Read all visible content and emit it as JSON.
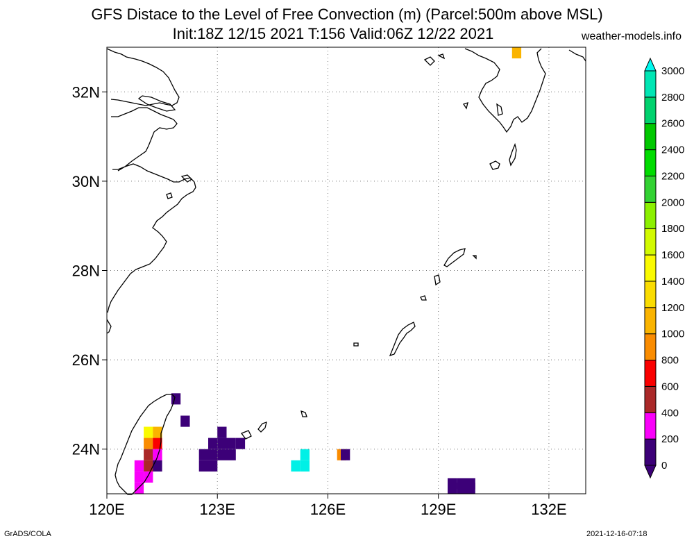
{
  "header": {
    "title_line1": "GFS Distace to the Level of Free Convection (m) (Parcel:500m above MSL)",
    "title_line2": "Init:18Z 12/15 2021 T:156 Valid:06Z 12/22 2021",
    "site": "weather-models.info"
  },
  "footer": {
    "left": "GrADS/COLA",
    "right": "2021-12-16-07:18"
  },
  "map": {
    "projection": "latlon",
    "lon_range": [
      120,
      133
    ],
    "lat_range": [
      23,
      33
    ],
    "lon_ticks": [
      {
        "value": 120,
        "label": "120E"
      },
      {
        "value": 123,
        "label": "123E"
      },
      {
        "value": 126,
        "label": "126E"
      },
      {
        "value": 129,
        "label": "129E"
      },
      {
        "value": 132,
        "label": "132E"
      }
    ],
    "lat_ticks": [
      {
        "value": 24,
        "label": "24N"
      },
      {
        "value": 26,
        "label": "26N"
      },
      {
        "value": 28,
        "label": "28N"
      },
      {
        "value": 30,
        "label": "30N"
      },
      {
        "value": 32,
        "label": "32N"
      }
    ],
    "grid": "dotted",
    "cells": [
      {
        "lon": 121.0,
        "lat": 24.25,
        "value": 1400
      },
      {
        "lon": 121.25,
        "lat": 24.25,
        "value": 1000
      },
      {
        "lon": 121.0,
        "lat": 24.0,
        "value": 800
      },
      {
        "lon": 121.25,
        "lat": 24.0,
        "value": 600
      },
      {
        "lon": 121.0,
        "lat": 23.75,
        "value": 500
      },
      {
        "lon": 121.25,
        "lat": 23.75,
        "value": 300
      },
      {
        "lon": 120.75,
        "lat": 23.5,
        "value": 300
      },
      {
        "lon": 121.0,
        "lat": 23.5,
        "value": 500
      },
      {
        "lon": 121.25,
        "lat": 23.5,
        "value": 150
      },
      {
        "lon": 120.75,
        "lat": 23.25,
        "value": 300
      },
      {
        "lon": 121.0,
        "lat": 23.25,
        "value": 300
      },
      {
        "lon": 120.75,
        "lat": 23.0,
        "value": 300
      },
      {
        "lon": 121.75,
        "lat": 25.0,
        "value": 50
      },
      {
        "lon": 122.0,
        "lat": 24.5,
        "value": 50
      },
      {
        "lon": 122.75,
        "lat": 24.0,
        "value": 50
      },
      {
        "lon": 123.0,
        "lat": 24.0,
        "value": 50
      },
      {
        "lon": 123.0,
        "lat": 24.25,
        "value": 50
      },
      {
        "lon": 123.25,
        "lat": 24.0,
        "value": 150
      },
      {
        "lon": 123.5,
        "lat": 24.0,
        "value": 150
      },
      {
        "lon": 122.5,
        "lat": 23.75,
        "value": 50
      },
      {
        "lon": 122.75,
        "lat": 23.75,
        "value": 50
      },
      {
        "lon": 123.0,
        "lat": 23.75,
        "value": 50
      },
      {
        "lon": 123.25,
        "lat": 23.75,
        "value": 150
      },
      {
        "lon": 122.5,
        "lat": 23.5,
        "value": 50
      },
      {
        "lon": 122.75,
        "lat": 23.5,
        "value": 150
      },
      {
        "lon": 125.0,
        "lat": 23.5,
        "value": 3000
      },
      {
        "lon": 125.25,
        "lat": 23.5,
        "value": 3000
      },
      {
        "lon": 125.25,
        "lat": 23.75,
        "value": 3000
      },
      {
        "lon": 126.25,
        "lat": 23.75,
        "value": 900
      },
      {
        "lon": 126.35,
        "lat": 23.75,
        "value": 50
      },
      {
        "lon": 129.25,
        "lat": 23.0,
        "value": 150
      },
      {
        "lon": 129.5,
        "lat": 23.0,
        "value": 150
      },
      {
        "lon": 129.75,
        "lat": 23.0,
        "value": 150
      },
      {
        "lon": 129.25,
        "lat": 23.1,
        "value": 50
      },
      {
        "lon": 129.5,
        "lat": 23.1,
        "value": 50
      },
      {
        "lon": 129.75,
        "lat": 23.1,
        "value": 50
      },
      {
        "lon": 131.0,
        "lat": 32.75,
        "value": 1000
      }
    ]
  },
  "colorbar": {
    "levels": [
      {
        "label": "0",
        "color": "#3c0078"
      },
      {
        "label": "200",
        "color": "#fa00fa"
      },
      {
        "label": "400",
        "color": "#aa2828"
      },
      {
        "label": "600",
        "color": "#fa0000"
      },
      {
        "label": "800",
        "color": "#fa8c00"
      },
      {
        "label": "1000",
        "color": "#fab400"
      },
      {
        "label": "1200",
        "color": "#fadc00"
      },
      {
        "label": "1400",
        "color": "#fafa00"
      },
      {
        "label": "1600",
        "color": "#d2fa00"
      },
      {
        "label": "1800",
        "color": "#8cf000"
      },
      {
        "label": "2000",
        "color": "#32d232"
      },
      {
        "label": "2200",
        "color": "#00dc00"
      },
      {
        "label": "2400",
        "color": "#00c800"
      },
      {
        "label": "2600",
        "color": "#00d26e"
      },
      {
        "label": "2800",
        "color": "#00e6b4"
      },
      {
        "label": "3000",
        "color": "#00f0e6"
      }
    ],
    "below_color": "#3c0078",
    "above_color": "#00faf0"
  }
}
